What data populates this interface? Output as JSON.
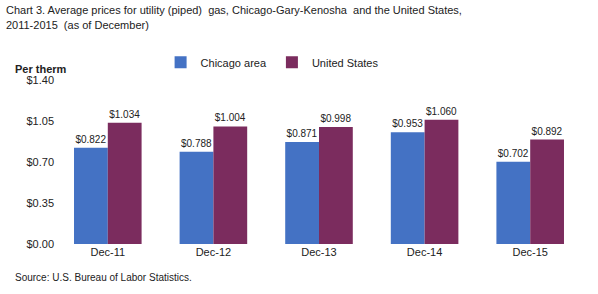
{
  "chart_data": {
    "type": "bar",
    "title": "Chart 3. Average prices for utility (piped)  gas, Chicago-Gary-Kenosha  and the United States,\n2011-2015  (as of December)",
    "ylabel": "Per therm",
    "annotations": [
      "Source: U.S. Bureau of Labor Statistics."
    ],
    "categories": [
      "Dec-11",
      "Dec-12",
      "Dec-13",
      "Dec-14",
      "Dec-15"
    ],
    "series": [
      {
        "name": "Chicago area",
        "color": "#4472C4",
        "values": [
          0.822,
          0.788,
          0.871,
          0.953,
          0.702
        ],
        "value_labels": [
          "$0.822",
          "$0.788",
          "$0.871",
          "$0.953",
          "$0.702"
        ]
      },
      {
        "name": "United States",
        "color": "#7B2C5E",
        "values": [
          1.034,
          1.004,
          0.998,
          1.06,
          0.892
        ],
        "value_labels": [
          "$1.034",
          "$1.004",
          "$0.998",
          "$1.060",
          "$0.892"
        ]
      }
    ],
    "ylim": [
      0.0,
      1.4
    ],
    "yticks": [
      {
        "value": 0.0,
        "label": "$0.00"
      },
      {
        "value": 0.35,
        "label": "$0.35"
      },
      {
        "value": 0.7,
        "label": "$0.70"
      },
      {
        "value": 1.05,
        "label": "$1.05"
      },
      {
        "value": 1.4,
        "label": "$1.40"
      }
    ],
    "grid": false,
    "legend": "upper left",
    "data_labels": true
  }
}
